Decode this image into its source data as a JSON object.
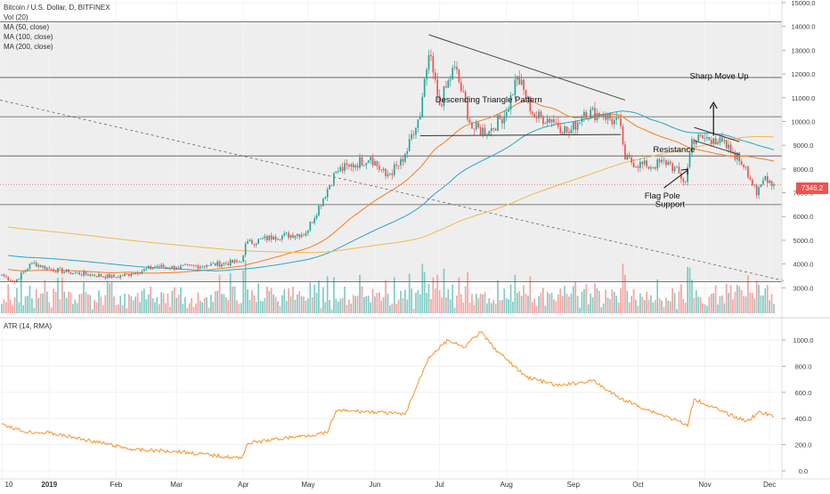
{
  "header": {
    "symbol_line": "Bitcoin / U.S. Dollar, D, BITFINEX",
    "indicators": [
      "Vol (20)",
      "MA (50, close)",
      "MA (100, close)",
      "MA (200, close)"
    ]
  },
  "last_price": "7346.2",
  "annotations": {
    "pattern": "Descending Triangle Pattern",
    "sharp_move": "Sharp Move Up",
    "resistance": "Resistance",
    "flag_pole": "Flag Pole",
    "support": "Support"
  },
  "colors": {
    "up": "#26a69a",
    "down": "#ef5350",
    "vol_up": "#80cbc4",
    "vol_down": "#f5a3a3",
    "ma50": "#f57c1f",
    "ma100": "#26a6c9",
    "ma200": "#f2b94a",
    "atr": "#f59a3d",
    "background": "#ffffff",
    "shaded_band": "#eeeeee"
  },
  "chart_data": [
    {
      "type": "candlestick",
      "title": "Bitcoin / U.S. Dollar, D, BITFINEX",
      "x_ticks": [
        "10",
        "2019",
        "Feb",
        "Mar",
        "Apr",
        "May",
        "Jun",
        "Jul",
        "Aug",
        "Sep",
        "Oct",
        "Nov",
        "Dec"
      ],
      "y_ticks": [
        "3000.0",
        "4000.0",
        "5000.0",
        "6000.0",
        "7000.0",
        "8000.0",
        "9000.0",
        "10000.0",
        "11000.0",
        "12000.0",
        "13000.0",
        "14000.0",
        "15000.0"
      ],
      "ylim": [
        2000,
        15000
      ],
      "grid": true,
      "horizontal_levels": [
        14200,
        11850,
        10200,
        8550,
        6500,
        3250
      ],
      "price_path": [
        {
          "date": "2018-12-10",
          "close": 3550
        },
        {
          "date": "2018-12-16",
          "close": 3250
        },
        {
          "date": "2018-12-24",
          "close": 4050
        },
        {
          "date": "2019-01-01",
          "close": 3800
        },
        {
          "date": "2019-01-10",
          "close": 3650
        },
        {
          "date": "2019-01-20",
          "close": 3550
        },
        {
          "date": "2019-02-01",
          "close": 3450
        },
        {
          "date": "2019-02-08",
          "close": 3600
        },
        {
          "date": "2019-02-20",
          "close": 3900
        },
        {
          "date": "2019-03-01",
          "close": 3850
        },
        {
          "date": "2019-03-15",
          "close": 3950
        },
        {
          "date": "2019-03-31",
          "close": 4100
        },
        {
          "date": "2019-04-02",
          "close": 4850
        },
        {
          "date": "2019-04-15",
          "close": 5150
        },
        {
          "date": "2019-04-30",
          "close": 5300
        },
        {
          "date": "2019-05-14",
          "close": 7900
        },
        {
          "date": "2019-05-20",
          "close": 8100
        },
        {
          "date": "2019-05-30",
          "close": 8500
        },
        {
          "date": "2019-06-06",
          "close": 7700
        },
        {
          "date": "2019-06-14",
          "close": 8300
        },
        {
          "date": "2019-06-22",
          "close": 10200
        },
        {
          "date": "2019-06-26",
          "close": 12800
        },
        {
          "date": "2019-07-01",
          "close": 10700
        },
        {
          "date": "2019-07-08",
          "close": 12300
        },
        {
          "date": "2019-07-16",
          "close": 9700
        },
        {
          "date": "2019-07-24",
          "close": 9600
        },
        {
          "date": "2019-08-01",
          "close": 10400
        },
        {
          "date": "2019-08-06",
          "close": 11900
        },
        {
          "date": "2019-08-14",
          "close": 10200
        },
        {
          "date": "2019-08-22",
          "close": 10100
        },
        {
          "date": "2019-08-30",
          "close": 9500
        },
        {
          "date": "2019-09-06",
          "close": 10400
        },
        {
          "date": "2019-09-15",
          "close": 10300
        },
        {
          "date": "2019-09-23",
          "close": 9800
        },
        {
          "date": "2019-09-25",
          "close": 8400
        },
        {
          "date": "2019-10-05",
          "close": 8100
        },
        {
          "date": "2019-10-15",
          "close": 8300
        },
        {
          "date": "2019-10-23",
          "close": 7450
        },
        {
          "date": "2019-10-26",
          "close": 9250
        },
        {
          "date": "2019-11-05",
          "close": 9300
        },
        {
          "date": "2019-11-14",
          "close": 8700
        },
        {
          "date": "2019-11-20",
          "close": 8100
        },
        {
          "date": "2019-11-25",
          "close": 6900
        },
        {
          "date": "2019-11-29",
          "close": 7700
        },
        {
          "date": "2019-12-03",
          "close": 7346.2
        }
      ],
      "series": [
        {
          "name": "MA (50, close)",
          "color": "#f57c1f"
        },
        {
          "name": "MA (100, close)",
          "color": "#26a6c9"
        },
        {
          "name": "MA (200, close)",
          "color": "#f2b94a"
        },
        {
          "name": "Vol (20)"
        }
      ]
    },
    {
      "type": "line",
      "title": "ATR (14, RMA)",
      "y_ticks": [
        "0.0",
        "200.0",
        "400.0",
        "600.0",
        "800.0",
        "1000.0"
      ],
      "ylim": [
        -50,
        1100
      ],
      "series": [
        {
          "name": "ATR (14, RMA)",
          "color": "#f59a3d",
          "points": [
            {
              "date": "2018-12-10",
              "value": 360
            },
            {
              "date": "2018-12-20",
              "value": 300
            },
            {
              "date": "2019-01-01",
              "value": 290
            },
            {
              "date": "2019-01-20",
              "value": 230
            },
            {
              "date": "2019-02-10",
              "value": 160
            },
            {
              "date": "2019-03-01",
              "value": 150
            },
            {
              "date": "2019-03-31",
              "value": 95
            },
            {
              "date": "2019-04-03",
              "value": 210
            },
            {
              "date": "2019-04-20",
              "value": 250
            },
            {
              "date": "2019-05-10",
              "value": 290
            },
            {
              "date": "2019-05-14",
              "value": 460
            },
            {
              "date": "2019-06-01",
              "value": 450
            },
            {
              "date": "2019-06-15",
              "value": 430
            },
            {
              "date": "2019-06-26",
              "value": 870
            },
            {
              "date": "2019-07-05",
              "value": 1000
            },
            {
              "date": "2019-07-12",
              "value": 940
            },
            {
              "date": "2019-07-20",
              "value": 1060
            },
            {
              "date": "2019-07-28",
              "value": 910
            },
            {
              "date": "2019-08-10",
              "value": 720
            },
            {
              "date": "2019-08-25",
              "value": 650
            },
            {
              "date": "2019-09-10",
              "value": 690
            },
            {
              "date": "2019-09-22",
              "value": 560
            },
            {
              "date": "2019-10-05",
              "value": 470
            },
            {
              "date": "2019-10-20",
              "value": 380
            },
            {
              "date": "2019-10-24",
              "value": 340
            },
            {
              "date": "2019-10-27",
              "value": 550
            },
            {
              "date": "2019-11-08",
              "value": 460
            },
            {
              "date": "2019-11-20",
              "value": 380
            },
            {
              "date": "2019-11-27",
              "value": 450
            },
            {
              "date": "2019-12-03",
              "value": 410
            }
          ]
        }
      ]
    }
  ]
}
